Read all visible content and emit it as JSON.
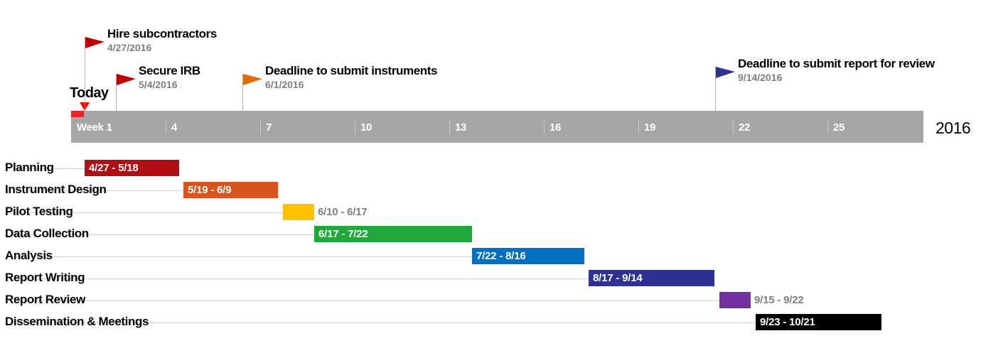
{
  "chart_data": {
    "type": "gantt",
    "year_label": "2016",
    "today_label": "Today",
    "axis": {
      "start": "2016-04-24",
      "end": "2016-11-06",
      "week_ticks": [
        {
          "week": 1,
          "label": "Week 1"
        },
        {
          "week": 4,
          "label": "4"
        },
        {
          "week": 7,
          "label": "7"
        },
        {
          "week": 10,
          "label": "10"
        },
        {
          "week": 13,
          "label": "13"
        },
        {
          "week": 16,
          "label": "16"
        },
        {
          "week": 19,
          "label": "19"
        },
        {
          "week": 22,
          "label": "22"
        },
        {
          "week": 25,
          "label": "25"
        }
      ]
    },
    "today": "2016-04-27",
    "milestones": [
      {
        "title": "Hire subcontractors",
        "date_label": "4/27/2016",
        "date": "2016-04-27",
        "color": "#c00000",
        "row": 0
      },
      {
        "title": "Secure IRB",
        "date_label": "5/4/2016",
        "date": "2016-05-04",
        "color": "#c00000",
        "row": 1
      },
      {
        "title": "Deadline to submit instruments",
        "date_label": "6/1/2016",
        "date": "2016-06-01",
        "color": "#e26b0a",
        "row": 1
      },
      {
        "title": "Deadline to submit report for review",
        "date_label": "9/14/2016",
        "date": "2016-09-14",
        "color": "#2e3192",
        "row": 2
      }
    ],
    "tasks": [
      {
        "name": "Planning",
        "start": "2016-04-27",
        "end": "2016-05-18",
        "label": "4/27 - 5/18",
        "color": "#b01014",
        "label_inside": true,
        "label_color": "#ffffff"
      },
      {
        "name": "Instrument Design",
        "start": "2016-05-19",
        "end": "2016-06-09",
        "label": "5/19 - 6/9",
        "color": "#d9531e",
        "label_inside": true,
        "label_color": "#ffffff"
      },
      {
        "name": "Pilot Testing",
        "start": "2016-06-10",
        "end": "2016-06-17",
        "label": "6/10 - 6/17",
        "color": "#ffc000",
        "label_inside": false,
        "label_color": "#7f7f7f"
      },
      {
        "name": "Data Collection",
        "start": "2016-06-17",
        "end": "2016-07-22",
        "label": "6/17 - 7/22",
        "color": "#1ea83c",
        "label_inside": true,
        "label_color": "#ffffff"
      },
      {
        "name": "Analysis",
        "start": "2016-07-22",
        "end": "2016-08-16",
        "label": "7/22 - 8/16",
        "color": "#0070c0",
        "label_inside": true,
        "label_color": "#ffffff"
      },
      {
        "name": "Report Writing",
        "start": "2016-08-17",
        "end": "2016-09-14",
        "label": "8/17 - 9/14",
        "color": "#2e3192",
        "label_inside": true,
        "label_color": "#ffffff"
      },
      {
        "name": "Report Review",
        "start": "2016-09-15",
        "end": "2016-09-22",
        "label": "9/15 - 9/22",
        "color": "#7030a0",
        "label_inside": false,
        "label_color": "#7f7f7f"
      },
      {
        "name": "Dissemination & Meetings",
        "start": "2016-09-23",
        "end": "2016-10-21",
        "label": "9/23 - 10/21",
        "color": "#000000",
        "label_inside": true,
        "label_color": "#ffffff"
      }
    ]
  }
}
